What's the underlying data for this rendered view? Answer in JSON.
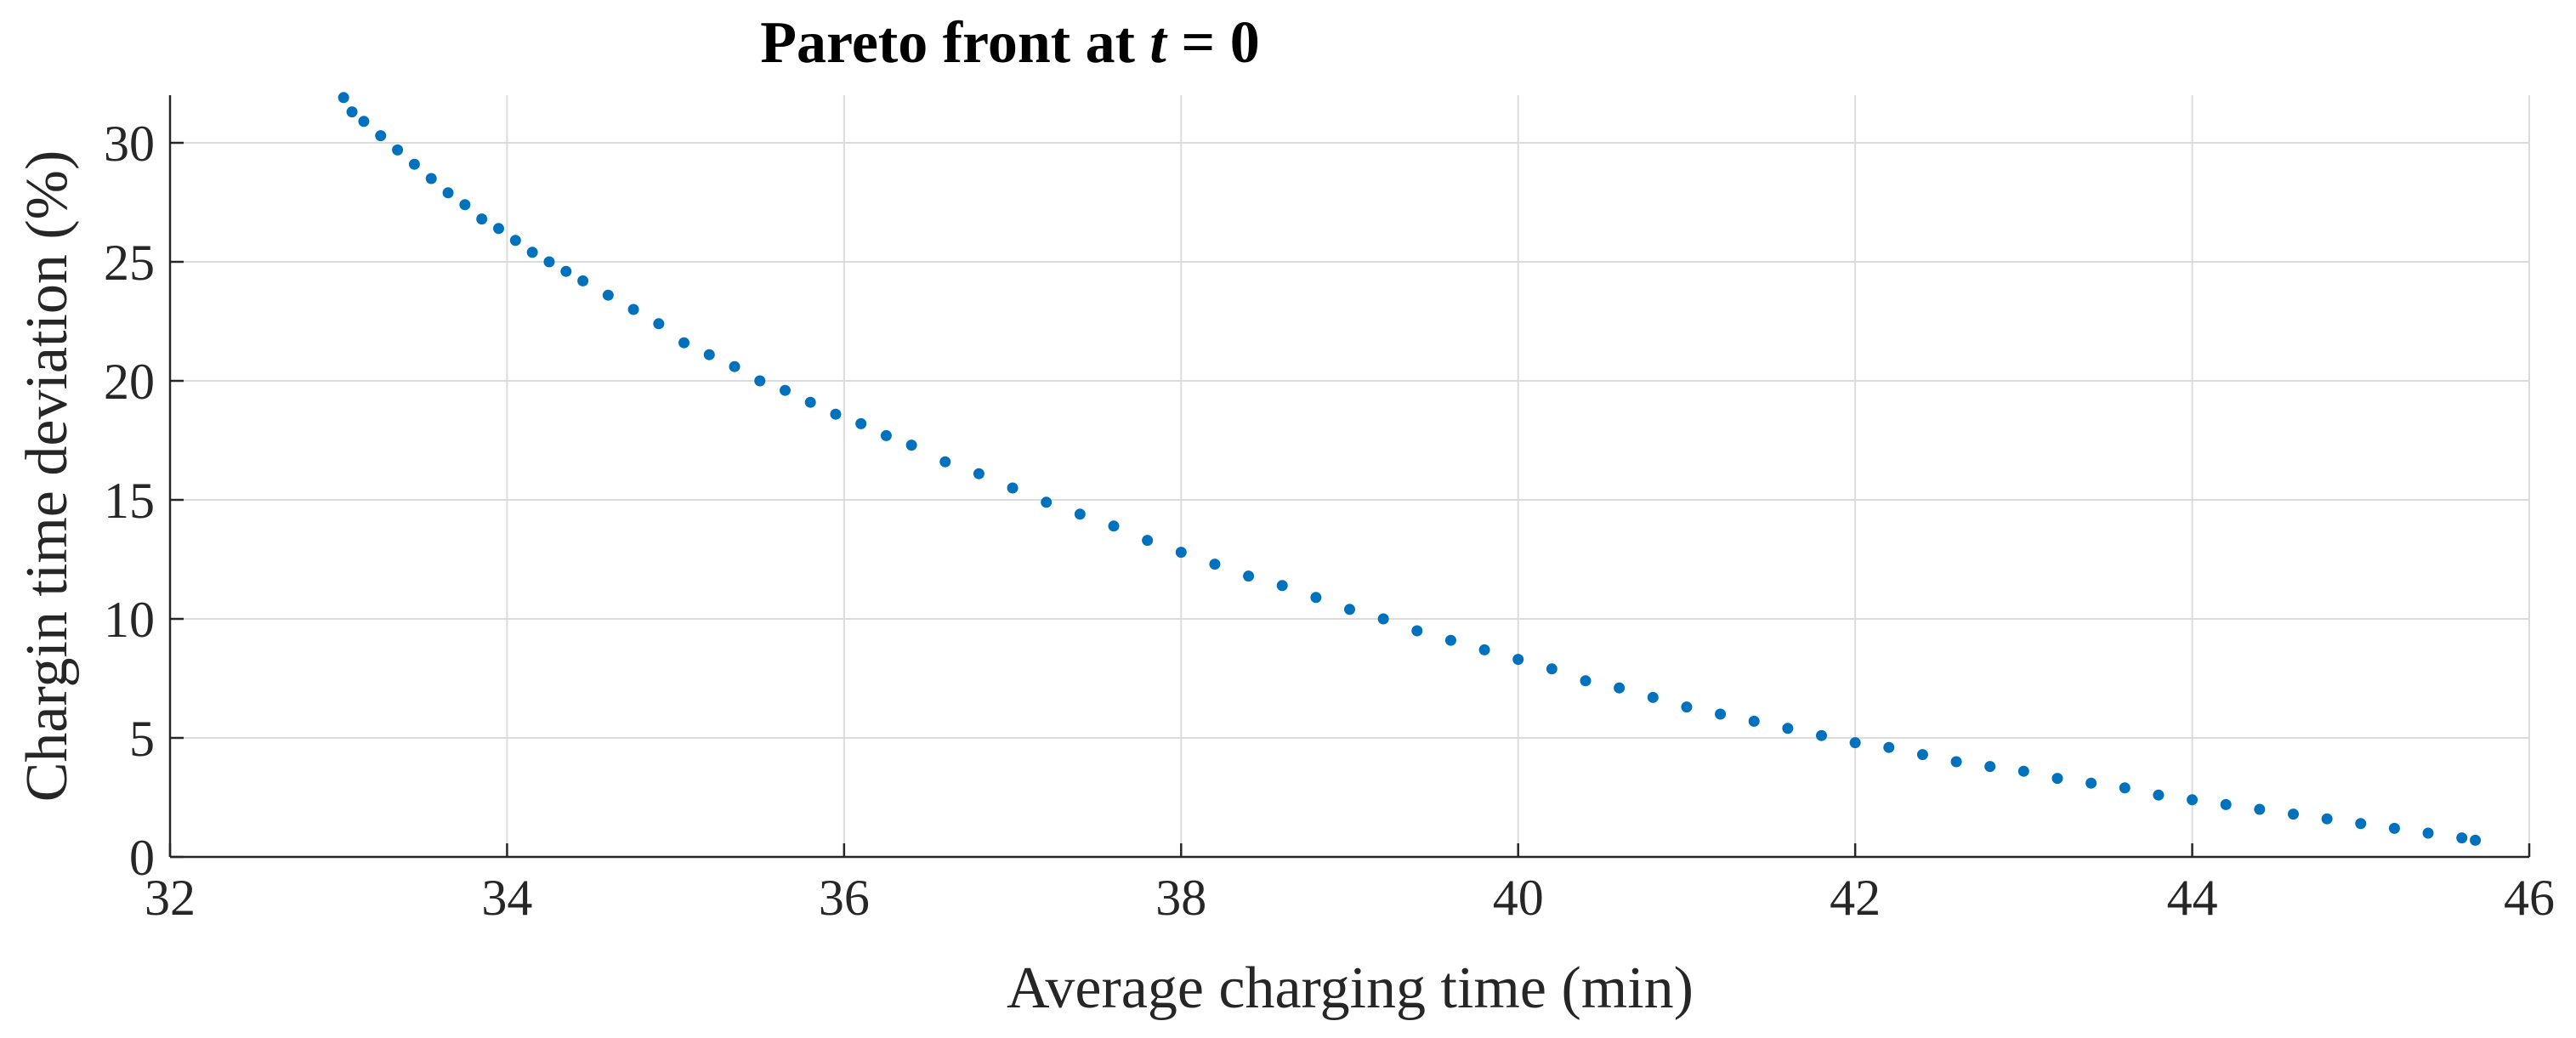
{
  "chart_data": {
    "type": "scatter",
    "title_prefix": "Pareto front at ",
    "title_var": "t",
    "title_suffix": " = 0",
    "xlabel": "Average charging time (min)",
    "ylabel": "Chargin time deviation (%)",
    "xlim": [
      32,
      46
    ],
    "ylim": [
      0,
      32
    ],
    "xticks": [
      32,
      34,
      36,
      38,
      40,
      42,
      44,
      46
    ],
    "yticks": [
      0,
      5,
      10,
      15,
      20,
      25,
      30
    ],
    "grid": true,
    "legend": "none",
    "marker_color": "#0072BD",
    "series": [
      {
        "x": [
          33.03,
          33.08,
          33.15,
          33.25,
          33.35,
          33.45,
          33.55,
          33.65,
          33.75,
          33.85,
          33.95,
          34.05,
          34.15,
          34.25,
          34.35,
          34.45,
          34.6,
          34.75,
          34.9,
          35.05,
          35.2,
          35.35,
          35.5,
          35.65,
          35.8,
          35.95,
          36.1,
          36.25,
          36.4,
          36.6,
          36.8,
          37.0,
          37.2,
          37.4,
          37.6,
          37.8,
          38.0,
          38.2,
          38.4,
          38.6,
          38.8,
          39.0,
          39.2,
          39.4,
          39.6,
          39.8,
          40.0,
          40.2,
          40.4,
          40.6,
          40.8,
          41.0,
          41.2,
          41.4,
          41.6,
          41.8,
          42.0,
          42.2,
          42.4,
          42.6,
          42.8,
          43.0,
          43.2,
          43.4,
          43.6,
          43.8,
          44.0,
          44.2,
          44.4,
          44.6,
          44.8,
          45.0,
          45.2,
          45.4,
          45.6,
          45.68
        ],
        "y": [
          31.9,
          31.3,
          30.9,
          30.3,
          29.7,
          29.1,
          28.5,
          27.9,
          27.4,
          26.8,
          26.4,
          25.9,
          25.4,
          25.0,
          24.6,
          24.2,
          23.6,
          23.0,
          22.4,
          21.6,
          21.1,
          20.6,
          20.0,
          19.6,
          19.1,
          18.6,
          18.2,
          17.7,
          17.3,
          16.6,
          16.1,
          15.5,
          14.9,
          14.4,
          13.9,
          13.3,
          12.8,
          12.3,
          11.8,
          11.4,
          10.9,
          10.4,
          10.0,
          9.5,
          9.1,
          8.7,
          8.3,
          7.9,
          7.4,
          7.1,
          6.7,
          6.3,
          6.0,
          5.7,
          5.4,
          5.1,
          4.8,
          4.6,
          4.3,
          4.0,
          3.8,
          3.6,
          3.3,
          3.1,
          2.9,
          2.6,
          2.4,
          2.2,
          2.0,
          1.8,
          1.6,
          1.4,
          1.2,
          1.0,
          0.8,
          0.7
        ]
      }
    ]
  }
}
